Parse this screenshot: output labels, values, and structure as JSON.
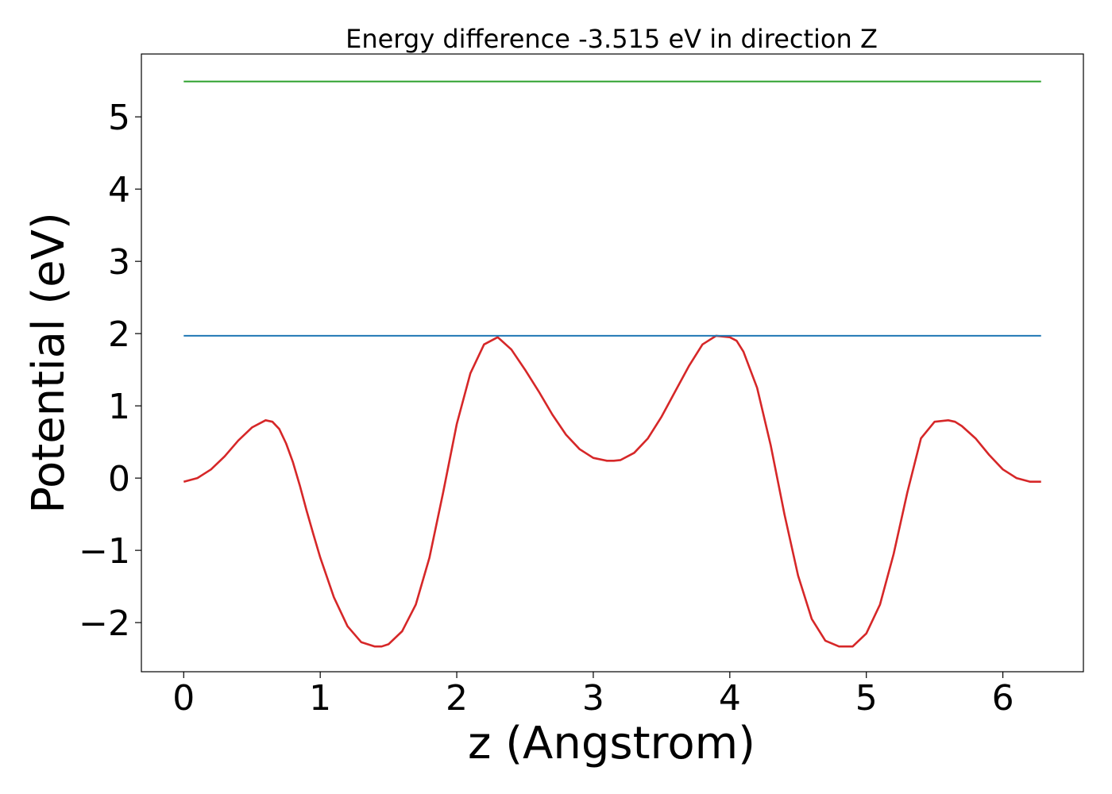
{
  "chart_data": {
    "type": "line",
    "title": "Energy difference -3.515 eV in direction Z",
    "xlabel": "z (Angstrom)",
    "ylabel": "Potential (eV)",
    "xlim": [
      -0.31,
      6.59
    ],
    "ylim": [
      -2.68,
      5.87
    ],
    "xticks": [
      0,
      1,
      2,
      3,
      4,
      5,
      6
    ],
    "xtick_labels": [
      "0",
      "1",
      "2",
      "3",
      "4",
      "5",
      "6"
    ],
    "yticks": [
      -2,
      -1,
      0,
      1,
      2,
      3,
      4,
      5
    ],
    "ytick_labels": [
      "−2",
      "−1",
      "0",
      "1",
      "2",
      "3",
      "4",
      "5"
    ],
    "grid": false,
    "series": [
      {
        "color": "#d62728",
        "x": [
          0,
          0.1,
          0.2,
          0.3,
          0.4,
          0.5,
          0.6,
          0.65,
          0.7,
          0.75,
          0.8,
          0.85,
          0.9,
          0.95,
          1.0,
          1.1,
          1.2,
          1.3,
          1.4,
          1.45,
          1.5,
          1.6,
          1.7,
          1.8,
          1.9,
          2.0,
          2.1,
          2.2,
          2.3,
          2.4,
          2.5,
          2.6,
          2.7,
          2.8,
          2.9,
          3.0,
          3.1,
          3.15,
          3.2,
          3.3,
          3.4,
          3.5,
          3.6,
          3.7,
          3.8,
          3.9,
          4.0,
          4.05,
          4.1,
          4.2,
          4.3,
          4.4,
          4.5,
          4.6,
          4.7,
          4.8,
          4.9,
          5.0,
          5.1,
          5.2,
          5.3,
          5.4,
          5.5,
          5.6,
          5.65,
          5.7,
          5.8,
          5.9,
          6.0,
          6.1,
          6.2,
          6.28
        ],
        "y": [
          -0.05,
          0.0,
          0.12,
          0.3,
          0.52,
          0.7,
          0.8,
          0.78,
          0.68,
          0.48,
          0.22,
          -0.1,
          -0.45,
          -0.78,
          -1.1,
          -1.65,
          -2.05,
          -2.27,
          -2.33,
          -2.33,
          -2.3,
          -2.12,
          -1.75,
          -1.1,
          -0.2,
          0.75,
          1.45,
          1.85,
          1.95,
          1.78,
          1.5,
          1.2,
          0.88,
          0.6,
          0.4,
          0.28,
          0.24,
          0.24,
          0.25,
          0.35,
          0.55,
          0.85,
          1.2,
          1.55,
          1.85,
          1.97,
          1.95,
          1.9,
          1.75,
          1.25,
          0.45,
          -0.5,
          -1.35,
          -1.95,
          -2.25,
          -2.33,
          -2.33,
          -2.15,
          -1.75,
          -1.05,
          -0.2,
          0.55,
          0.78,
          0.8,
          0.78,
          0.72,
          0.55,
          0.32,
          0.12,
          0.0,
          -0.05,
          -0.05
        ]
      },
      {
        "color": "#1f77b4",
        "x": [
          0,
          6.28
        ],
        "y": [
          1.97,
          1.97
        ]
      },
      {
        "color": "#2ca02c",
        "x": [
          0,
          6.28
        ],
        "y": [
          5.49,
          5.49
        ]
      }
    ]
  }
}
